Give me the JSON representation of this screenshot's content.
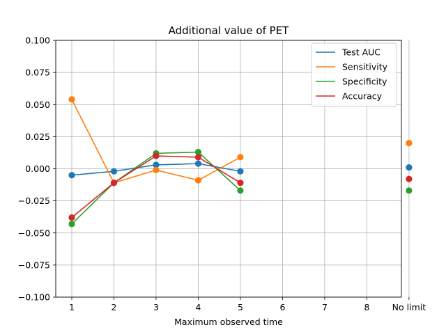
{
  "chart_data": {
    "type": "line",
    "title": "Additional value of PET",
    "xlabel": "Maximum observed time",
    "ylabel": "",
    "categories": [
      "1",
      "2",
      "3",
      "4",
      "5",
      "6",
      "7",
      "8",
      "No limit"
    ],
    "ylim": [
      -0.1,
      0.1
    ],
    "yticks": [
      "−0.100",
      "−0.075",
      "−0.050",
      "−0.025",
      "0.000",
      "0.025",
      "0.050",
      "0.075",
      "0.100"
    ],
    "ytick_values": [
      -0.1,
      -0.075,
      -0.05,
      -0.025,
      0,
      0.025,
      0.05,
      0.075,
      0.1
    ],
    "grid": true,
    "legend_position": "top-right",
    "connected_categories": [
      "1",
      "2",
      "3",
      "4",
      "5"
    ],
    "series": [
      {
        "name": "Test AUC",
        "color": "#1f77b4",
        "values": [
          -0.005,
          -0.002,
          0.003,
          0.004,
          -0.002,
          null,
          null,
          null,
          0.001
        ]
      },
      {
        "name": "Sensitivity",
        "color": "#ff7f0e",
        "values": [
          0.054,
          -0.011,
          -0.001,
          -0.009,
          0.009,
          null,
          null,
          null,
          0.02
        ]
      },
      {
        "name": "Specificity",
        "color": "#2ca02c",
        "values": [
          -0.043,
          -0.011,
          0.012,
          0.013,
          -0.017,
          null,
          null,
          null,
          -0.017
        ]
      },
      {
        "name": "Accuracy",
        "color": "#d62728",
        "values": [
          -0.038,
          -0.011,
          0.01,
          0.009,
          -0.011,
          null,
          null,
          null,
          -0.008
        ]
      }
    ]
  }
}
